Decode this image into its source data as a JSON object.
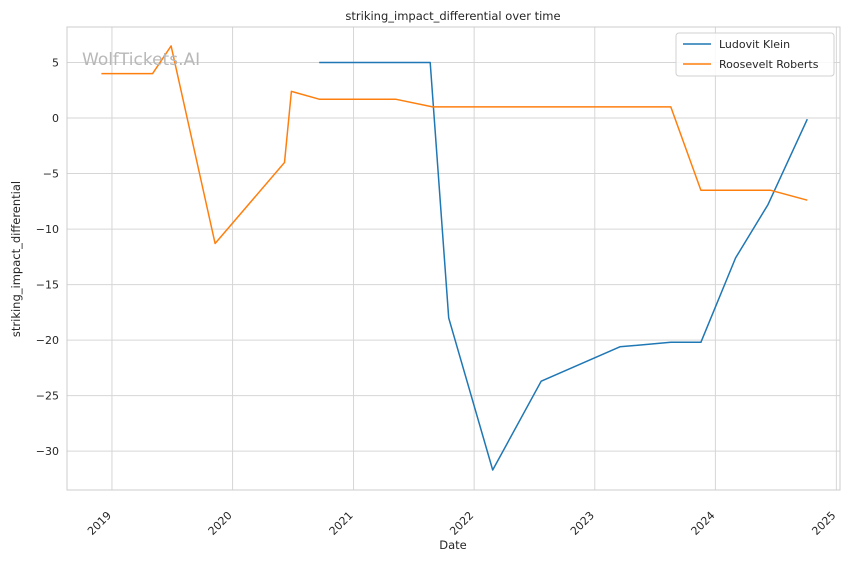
{
  "chart_data": {
    "type": "line",
    "title": "striking_impact_differential over time",
    "xlabel": "Date",
    "ylabel": "striking_impact_differential",
    "x_ticks": [
      "2019",
      "2020",
      "2021",
      "2022",
      "2023",
      "2024",
      "2025"
    ],
    "y_ticks": [
      5,
      0,
      -5,
      -10,
      -15,
      -20,
      -25,
      -30
    ],
    "y_tick_labels": [
      "5",
      "0",
      "−5",
      "−10",
      "−15",
      "−20",
      "−25",
      "−30"
    ],
    "xlim": [
      "2018-08-18",
      "2025-01-12"
    ],
    "ylim": [
      -33.5,
      8.2
    ],
    "grid": true,
    "legend_position": "top-right",
    "watermark": "WolfTickets.AI",
    "series": [
      {
        "name": "Ludovit Klein",
        "color": "#1f77b4",
        "points": [
          [
            "2020-09-19",
            5.0
          ],
          [
            "2021-08-21",
            5.0
          ],
          [
            "2021-10-16",
            -18.0
          ],
          [
            "2022-02-26",
            -31.7
          ],
          [
            "2022-07-23",
            -23.7
          ],
          [
            "2023-03-18",
            -20.6
          ],
          [
            "2023-08-19",
            -20.2
          ],
          [
            "2023-11-18",
            -20.2
          ],
          [
            "2024-03-02",
            -12.6
          ],
          [
            "2024-06-08",
            -7.8
          ],
          [
            "2024-10-05",
            -0.1
          ]
        ]
      },
      {
        "name": "Roosevelt Roberts",
        "color": "#ff7f0e",
        "points": [
          [
            "2018-11-30",
            4.0
          ],
          [
            "2019-05-04",
            4.0
          ],
          [
            "2019-06-29",
            6.5
          ],
          [
            "2019-11-09",
            -11.3
          ],
          [
            "2020-06-06",
            -4.0
          ],
          [
            "2020-06-27",
            2.4
          ],
          [
            "2020-09-19",
            1.7
          ],
          [
            "2021-05-08",
            1.7
          ],
          [
            "2021-08-28",
            1.0
          ],
          [
            "2023-08-19",
            1.0
          ],
          [
            "2023-11-18",
            -6.5
          ],
          [
            "2024-06-15",
            -6.5
          ],
          [
            "2024-10-05",
            -7.4
          ]
        ]
      }
    ]
  }
}
